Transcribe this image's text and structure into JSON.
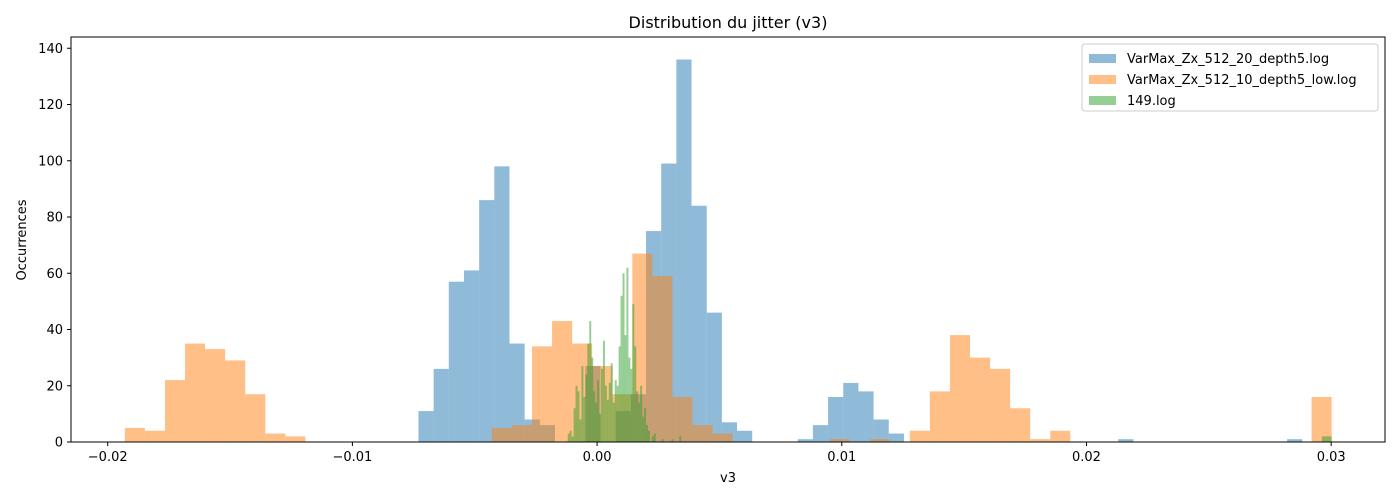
{
  "chart_data": {
    "type": "histogram",
    "title": "Distribution du jitter (v3)",
    "xlabel": "v3",
    "ylabel": "Occurrences",
    "xlim": [
      -0.0215,
      0.0322
    ],
    "ylim": [
      0,
      144
    ],
    "xticks": [
      -0.02,
      -0.01,
      0.0,
      0.01,
      0.02,
      0.03
    ],
    "xtick_labels": [
      "−0.02",
      "−0.01",
      "0.00",
      "0.01",
      "0.02",
      "0.03"
    ],
    "yticks": [
      0,
      20,
      40,
      60,
      80,
      100,
      120,
      140
    ],
    "ytick_labels": [
      "0",
      "20",
      "40",
      "60",
      "80",
      "100",
      "120",
      "140"
    ],
    "grid": false,
    "legend_position": "top-right",
    "series": [
      {
        "name": "VarMax_Zx_512_20_depth5.log",
        "color": "#1f77b4",
        "alpha": 0.5,
        "bins": [
          {
            "x0": -0.0073,
            "x1": -0.00668,
            "value": 11
          },
          {
            "x0": -0.00668,
            "x1": -0.00606,
            "value": 26
          },
          {
            "x0": -0.00606,
            "x1": -0.00544,
            "value": 57
          },
          {
            "x0": -0.00544,
            "x1": -0.00482,
            "value": 61
          },
          {
            "x0": -0.00482,
            "x1": -0.0042,
            "value": 86
          },
          {
            "x0": -0.0042,
            "x1": -0.00358,
            "value": 98
          },
          {
            "x0": -0.00358,
            "x1": -0.00296,
            "value": 35
          },
          {
            "x0": -0.00296,
            "x1": -0.00234,
            "value": 8
          },
          {
            "x0": -0.00234,
            "x1": -0.00172,
            "value": 6
          },
          {
            "x0": -0.00172,
            "x1": -0.0011,
            "value": 0
          },
          {
            "x0": -0.0011,
            "x1": -0.00048,
            "value": 0
          },
          {
            "x0": -0.00048,
            "x1": 0.00014,
            "value": 27
          },
          {
            "x0": 0.00014,
            "x1": 0.00076,
            "value": 0
          },
          {
            "x0": 0.00076,
            "x1": 0.00138,
            "value": 11
          },
          {
            "x0": 0.00138,
            "x1": 0.002,
            "value": 17
          },
          {
            "x0": 0.002,
            "x1": 0.00262,
            "value": 75
          },
          {
            "x0": 0.00262,
            "x1": 0.00324,
            "value": 99
          },
          {
            "x0": 0.00324,
            "x1": 0.00386,
            "value": 136
          },
          {
            "x0": 0.00386,
            "x1": 0.00448,
            "value": 84
          },
          {
            "x0": 0.00448,
            "x1": 0.0051,
            "value": 46
          },
          {
            "x0": 0.0051,
            "x1": 0.00572,
            "value": 7
          },
          {
            "x0": 0.00572,
            "x1": 0.00634,
            "value": 4
          },
          {
            "x0": 0.0082,
            "x1": 0.00882,
            "value": 1
          },
          {
            "x0": 0.00882,
            "x1": 0.00944,
            "value": 6
          },
          {
            "x0": 0.00944,
            "x1": 0.01006,
            "value": 16
          },
          {
            "x0": 0.01006,
            "x1": 0.01068,
            "value": 21
          },
          {
            "x0": 0.01068,
            "x1": 0.0113,
            "value": 18
          },
          {
            "x0": 0.0113,
            "x1": 0.01192,
            "value": 8
          },
          {
            "x0": 0.01192,
            "x1": 0.01254,
            "value": 3
          },
          {
            "x0": 0.0213,
            "x1": 0.02192,
            "value": 1
          },
          {
            "x0": 0.0282,
            "x1": 0.02882,
            "value": 1
          }
        ]
      },
      {
        "name": "VarMax_Zx_512_10_depth5_low.log",
        "color": "#ff7f0e",
        "alpha": 0.5,
        "bins": [
          {
            "x0": -0.0193,
            "x1": -0.01848,
            "value": 5
          },
          {
            "x0": -0.01848,
            "x1": -0.01766,
            "value": 4
          },
          {
            "x0": -0.01766,
            "x1": -0.01684,
            "value": 22
          },
          {
            "x0": -0.01684,
            "x1": -0.01602,
            "value": 35
          },
          {
            "x0": -0.01602,
            "x1": -0.0152,
            "value": 33
          },
          {
            "x0": -0.0152,
            "x1": -0.01438,
            "value": 29
          },
          {
            "x0": -0.01438,
            "x1": -0.01356,
            "value": 17
          },
          {
            "x0": -0.01356,
            "x1": -0.01274,
            "value": 3
          },
          {
            "x0": -0.01274,
            "x1": -0.01192,
            "value": 2
          },
          {
            "x0": -0.0043,
            "x1": -0.00348,
            "value": 5
          },
          {
            "x0": -0.00348,
            "x1": -0.00266,
            "value": 6
          },
          {
            "x0": -0.00266,
            "x1": -0.00184,
            "value": 34
          },
          {
            "x0": -0.00184,
            "x1": -0.00102,
            "value": 43
          },
          {
            "x0": -0.00102,
            "x1": -0.0002,
            "value": 35
          },
          {
            "x0": -0.0002,
            "x1": 0.00062,
            "value": 27
          },
          {
            "x0": 0.00062,
            "x1": 0.00144,
            "value": 17
          },
          {
            "x0": 0.00144,
            "x1": 0.00226,
            "value": 67
          },
          {
            "x0": 0.00226,
            "x1": 0.00308,
            "value": 59
          },
          {
            "x0": 0.00308,
            "x1": 0.0039,
            "value": 16
          },
          {
            "x0": 0.0039,
            "x1": 0.00472,
            "value": 6
          },
          {
            "x0": 0.00472,
            "x1": 0.00554,
            "value": 3
          },
          {
            "x0": 0.0095,
            "x1": 0.01032,
            "value": 1
          },
          {
            "x0": 0.01114,
            "x1": 0.01196,
            "value": 1
          },
          {
            "x0": 0.01278,
            "x1": 0.0136,
            "value": 4
          },
          {
            "x0": 0.0136,
            "x1": 0.01442,
            "value": 18
          },
          {
            "x0": 0.01442,
            "x1": 0.01524,
            "value": 38
          },
          {
            "x0": 0.01524,
            "x1": 0.01606,
            "value": 30
          },
          {
            "x0": 0.01606,
            "x1": 0.01688,
            "value": 26
          },
          {
            "x0": 0.01688,
            "x1": 0.0177,
            "value": 12
          },
          {
            "x0": 0.0177,
            "x1": 0.01852,
            "value": 1
          },
          {
            "x0": 0.01852,
            "x1": 0.01934,
            "value": 4
          },
          {
            "x0": 0.0292,
            "x1": 0.03002,
            "value": 16
          }
        ]
      },
      {
        "name": "149.log",
        "color": "#2ca02c",
        "alpha": 0.5,
        "bins": [
          {
            "x0": -0.0012,
            "x1": -0.00112,
            "value": 3
          },
          {
            "x0": -0.00112,
            "x1": -0.00104,
            "value": 4
          },
          {
            "x0": -0.00104,
            "x1": -0.00096,
            "value": 2
          },
          {
            "x0": -0.00096,
            "x1": -0.00088,
            "value": 12
          },
          {
            "x0": -0.00088,
            "x1": -0.0008,
            "value": 20
          },
          {
            "x0": -0.0008,
            "x1": -0.00072,
            "value": 18
          },
          {
            "x0": -0.00072,
            "x1": -0.00064,
            "value": 8
          },
          {
            "x0": -0.00064,
            "x1": -0.00056,
            "value": 27
          },
          {
            "x0": -0.00056,
            "x1": -0.00048,
            "value": 16
          },
          {
            "x0": -0.00048,
            "x1": -0.0004,
            "value": 24
          },
          {
            "x0": -0.0004,
            "x1": -0.00032,
            "value": 35
          },
          {
            "x0": -0.00032,
            "x1": -0.00024,
            "value": 43
          },
          {
            "x0": -0.00024,
            "x1": -0.00016,
            "value": 30
          },
          {
            "x0": -0.00016,
            "x1": -8e-05,
            "value": 18
          },
          {
            "x0": -8e-05,
            "x1": 0.0,
            "value": 14
          },
          {
            "x0": 0.0,
            "x1": 8e-05,
            "value": 22
          },
          {
            "x0": 8e-05,
            "x1": 0.00016,
            "value": 10
          },
          {
            "x0": 0.00016,
            "x1": 0.00024,
            "value": 26
          },
          {
            "x0": 0.00024,
            "x1": 0.00032,
            "value": 36
          },
          {
            "x0": 0.00032,
            "x1": 0.0004,
            "value": 20
          },
          {
            "x0": 0.0004,
            "x1": 0.00048,
            "value": 15
          },
          {
            "x0": 0.00048,
            "x1": 0.00056,
            "value": 21
          },
          {
            "x0": 0.00056,
            "x1": 0.00064,
            "value": 28
          },
          {
            "x0": 0.00064,
            "x1": 0.00072,
            "value": 14
          },
          {
            "x0": 0.00072,
            "x1": 0.0008,
            "value": 22
          },
          {
            "x0": 0.0008,
            "x1": 0.00088,
            "value": 20
          },
          {
            "x0": 0.00088,
            "x1": 0.00096,
            "value": 34
          },
          {
            "x0": 0.00096,
            "x1": 0.00104,
            "value": 52
          },
          {
            "x0": 0.00104,
            "x1": 0.00112,
            "value": 60
          },
          {
            "x0": 0.00112,
            "x1": 0.0012,
            "value": 38
          },
          {
            "x0": 0.0012,
            "x1": 0.00128,
            "value": 62
          },
          {
            "x0": 0.00128,
            "x1": 0.00136,
            "value": 30
          },
          {
            "x0": 0.00136,
            "x1": 0.00144,
            "value": 26
          },
          {
            "x0": 0.00144,
            "x1": 0.00152,
            "value": 49
          },
          {
            "x0": 0.00152,
            "x1": 0.0016,
            "value": 34
          },
          {
            "x0": 0.0016,
            "x1": 0.00168,
            "value": 18
          },
          {
            "x0": 0.00168,
            "x1": 0.00176,
            "value": 14
          },
          {
            "x0": 0.00176,
            "x1": 0.00184,
            "value": 20
          },
          {
            "x0": 0.00184,
            "x1": 0.00192,
            "value": 9
          },
          {
            "x0": 0.00192,
            "x1": 0.002,
            "value": 12
          },
          {
            "x0": 0.002,
            "x1": 0.00208,
            "value": 6
          },
          {
            "x0": 0.00208,
            "x1": 0.00216,
            "value": 4
          },
          {
            "x0": 0.00224,
            "x1": 0.00232,
            "value": 2
          },
          {
            "x0": 0.00232,
            "x1": 0.0024,
            "value": 3
          },
          {
            "x0": 0.00264,
            "x1": 0.00272,
            "value": 1
          },
          {
            "x0": 0.00304,
            "x1": 0.00312,
            "value": 1
          },
          {
            "x0": 0.00336,
            "x1": 0.00344,
            "value": 2
          },
          {
            "x0": 0.02962,
            "x1": 0.03002,
            "value": 2
          }
        ]
      }
    ]
  }
}
